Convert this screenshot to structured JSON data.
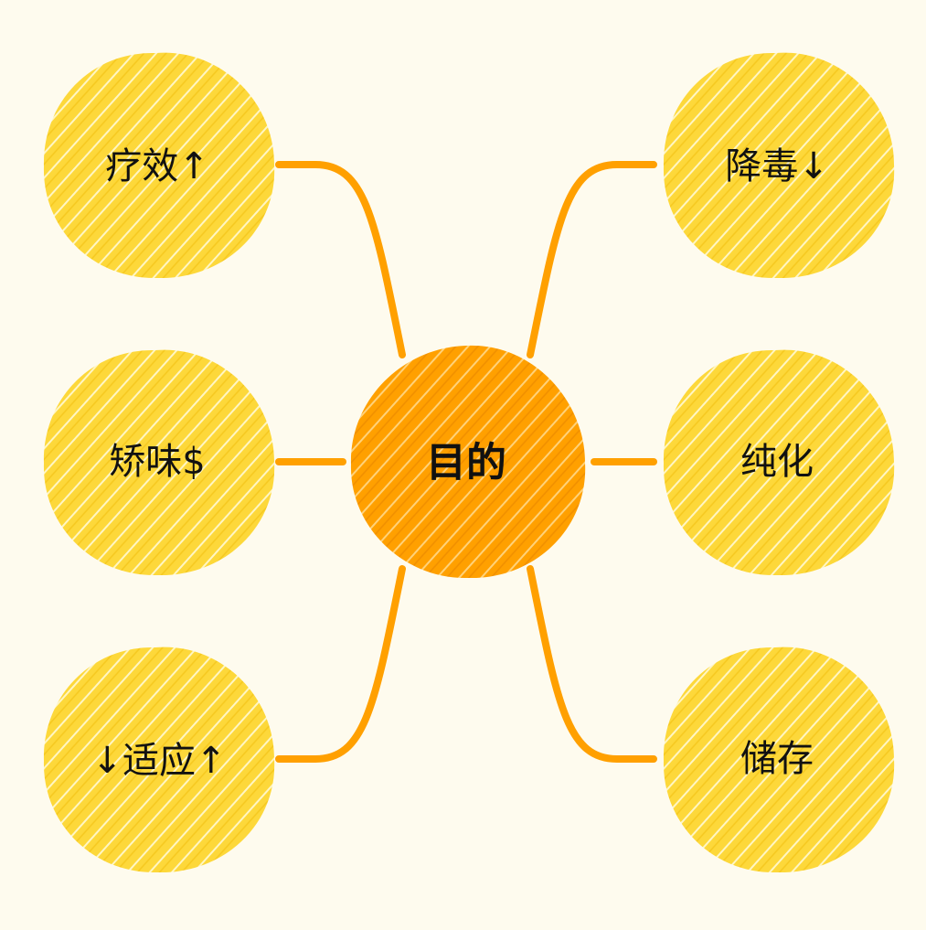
{
  "colors": {
    "background": "#fefbee",
    "leaf_fill": "#fdd83a",
    "hub_fill": "#ffa000",
    "connector": "#ffa000",
    "hatch": "#ffffff",
    "text": "#111111"
  },
  "center": {
    "label": "目的"
  },
  "branches": [
    {
      "label": "疗效↑"
    },
    {
      "label": "矫味$"
    },
    {
      "label": "↓适应↑"
    },
    {
      "label": "降毒↓"
    },
    {
      "label": "纯化"
    },
    {
      "label": "储存"
    }
  ]
}
